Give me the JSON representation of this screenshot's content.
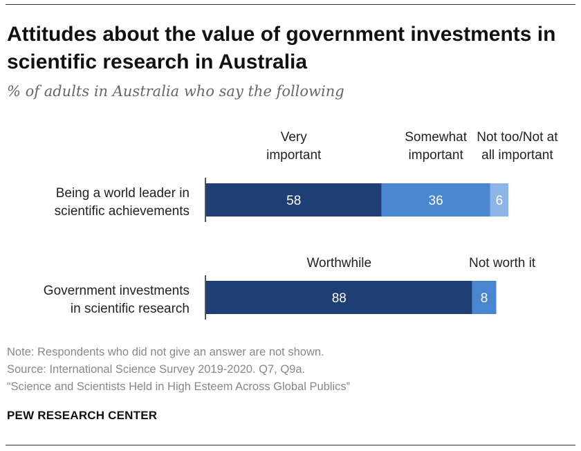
{
  "title": "Attitudes about the value of government investments in scientific research in Australia",
  "subtitle": "% of adults in Australia who say the following",
  "notes": [
    "Note: Respondents who did not give an answer are not shown.",
    "Source: International Science Survey 2019-2020. Q7, Q9a.",
    "“Science and Scientists Held in High Esteem Across Global Publics”"
  ],
  "brand": "PEW RESEARCH CENTER",
  "colors": {
    "dark": "#1e3f73",
    "mid": "#4a85cf",
    "light": "#8cb5e6",
    "text": "#222222",
    "axis": "#555555"
  },
  "chart_data": {
    "type": "bar",
    "orientation": "horizontal",
    "stacked": true,
    "xlim": [
      0,
      100
    ],
    "rows": [
      {
        "label": [
          "Being a world leader in",
          "scientific achievements"
        ],
        "segments": [
          {
            "name": [
              "Very",
              "important"
            ],
            "value": 58,
            "color": "#1e3f73"
          },
          {
            "name": [
              "Somewhat",
              "important"
            ],
            "value": 36,
            "color": "#4a85cf"
          },
          {
            "name": [
              "Not too/Not at",
              "all important"
            ],
            "value": 6,
            "color": "#8cb5e6"
          }
        ]
      },
      {
        "label": [
          "Government investments",
          "in scientific research"
        ],
        "segments": [
          {
            "name": [
              "Worthwhile"
            ],
            "value": 88,
            "color": "#1e3f73"
          },
          {
            "name": [
              "Not worth it"
            ],
            "value": 8,
            "color": "#4a85cf"
          }
        ]
      }
    ]
  }
}
